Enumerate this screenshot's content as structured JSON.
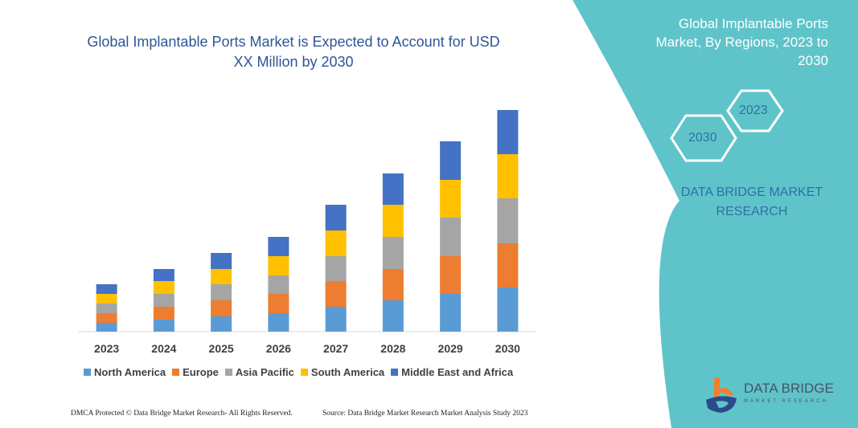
{
  "chart_data": {
    "type": "bar",
    "stacked": true,
    "title": "Global Implantable Ports Market is Expected to Account for USD XX Million by 2030",
    "categories": [
      "2023",
      "2024",
      "2025",
      "2026",
      "2027",
      "2028",
      "2029",
      "2030"
    ],
    "series": [
      {
        "name": "North America",
        "color": "#5b9bd5",
        "values": [
          11,
          15,
          19,
          23,
          31,
          39,
          47,
          55
        ]
      },
      {
        "name": "Europe",
        "color": "#ed7d31",
        "values": [
          12,
          16,
          20,
          24,
          32,
          39,
          47,
          55
        ]
      },
      {
        "name": "Asia Pacific",
        "color": "#a5a5a5",
        "values": [
          12,
          16,
          20,
          23,
          31,
          40,
          48,
          56
        ]
      },
      {
        "name": "South America",
        "color": "#ffc000",
        "values": [
          12,
          16,
          19,
          24,
          32,
          40,
          47,
          55
        ]
      },
      {
        "name": "Middle East and Africa",
        "color": "#4472c4",
        "values": [
          12,
          15,
          20,
          24,
          32,
          39,
          48,
          55
        ]
      }
    ],
    "xlabel": "",
    "ylabel": "",
    "y_axis_shown": false,
    "grid": false,
    "legend": "bottom"
  },
  "side": {
    "title": "Global Implantable Ports Market, By Regions, 2023 to 2030",
    "hex1": "2023",
    "hex2": "2030",
    "company": "DATA BRIDGE MARKET RESEARCH",
    "panel_color": "#5fc4c9"
  },
  "logo": {
    "name": "DATA BRIDGE",
    "sub": "MARKET RESEARCH"
  },
  "footer": {
    "left": "DMCA Protected © Data Bridge Market Research- All Rights Reserved.",
    "right": "Source: Data Bridge Market Research  Market Analysis Study 2023"
  }
}
